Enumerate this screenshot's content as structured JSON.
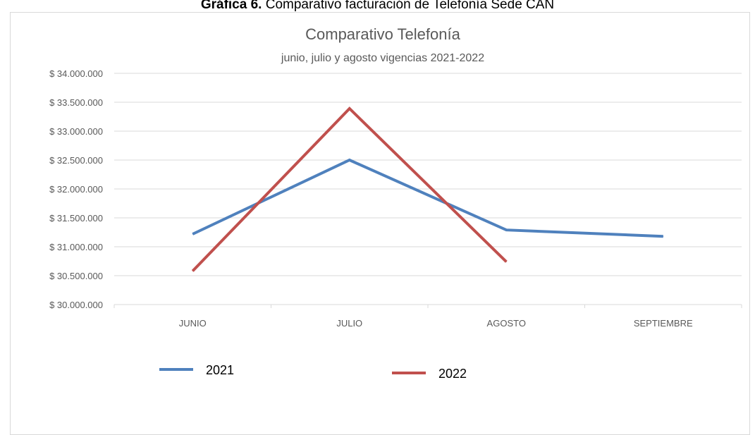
{
  "caption": {
    "prefix": "Gráfica 6.",
    "text": " Comparativo facturación de Telefonía Sede CAN"
  },
  "chart_data": {
    "type": "line",
    "title": "Comparativo Telefonía",
    "subtitle": "junio, julio y agosto vigencias 2021-2022",
    "categories": [
      "JUNIO",
      "JULIO",
      "AGOSTO",
      "SEPTIEMBRE"
    ],
    "ylim": [
      30000000,
      34000000
    ],
    "ytick_step": 500000,
    "ytick_labels": [
      "$ 30.000.000",
      "$ 30.500.000",
      "$ 31.000.000",
      "$ 31.500.000",
      "$ 32.000.000",
      "$ 32.500.000",
      "$ 33.000.000",
      "$ 33.500.000",
      "$ 34.000.000"
    ],
    "grid": true,
    "legend_position": "bottom",
    "series": [
      {
        "name": "2021",
        "color": "#4f81bd",
        "values": [
          31220000,
          32500000,
          31290000,
          31180000
        ]
      },
      {
        "name": "2022",
        "color": "#c0504d",
        "values": [
          30580000,
          33390000,
          30740000,
          null
        ]
      }
    ]
  }
}
